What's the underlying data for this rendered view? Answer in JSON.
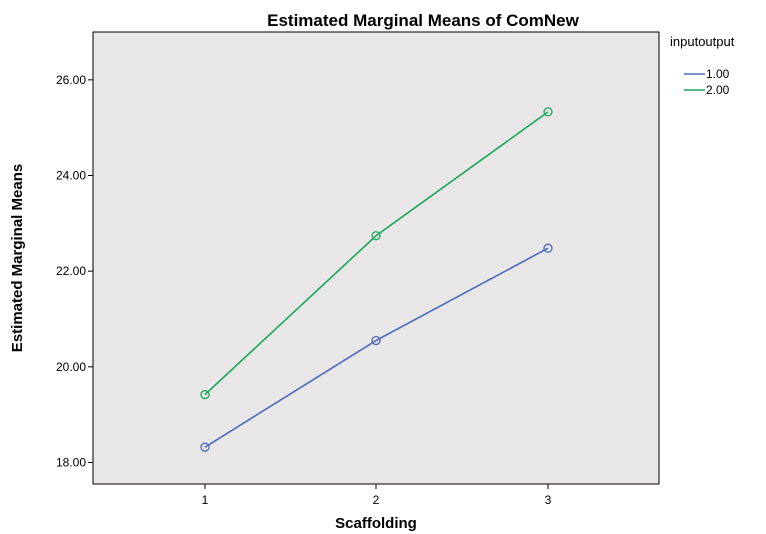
{
  "chart_data": {
    "type": "line",
    "title": "Estimated Marginal Means of ComNew",
    "xlabel": "Scaffolding",
    "ylabel": "Estimated Marginal Means",
    "categories": [
      "1",
      "2",
      "3"
    ],
    "yticks": [
      "18.00",
      "20.00",
      "22.00",
      "24.00",
      "26.00"
    ],
    "ylim": [
      17.55,
      27.0
    ],
    "legend_title": "inputoutput",
    "legend_position": "top-right, outside plot",
    "grid": false,
    "plot_background": "#e8e6e6",
    "series": [
      {
        "name": "1.00",
        "color": "#4a6cc0",
        "values": [
          18.32,
          20.55,
          22.48
        ]
      },
      {
        "name": "2.00",
        "color": "#19a85a",
        "values": [
          19.42,
          22.74,
          25.33
        ]
      }
    ]
  }
}
